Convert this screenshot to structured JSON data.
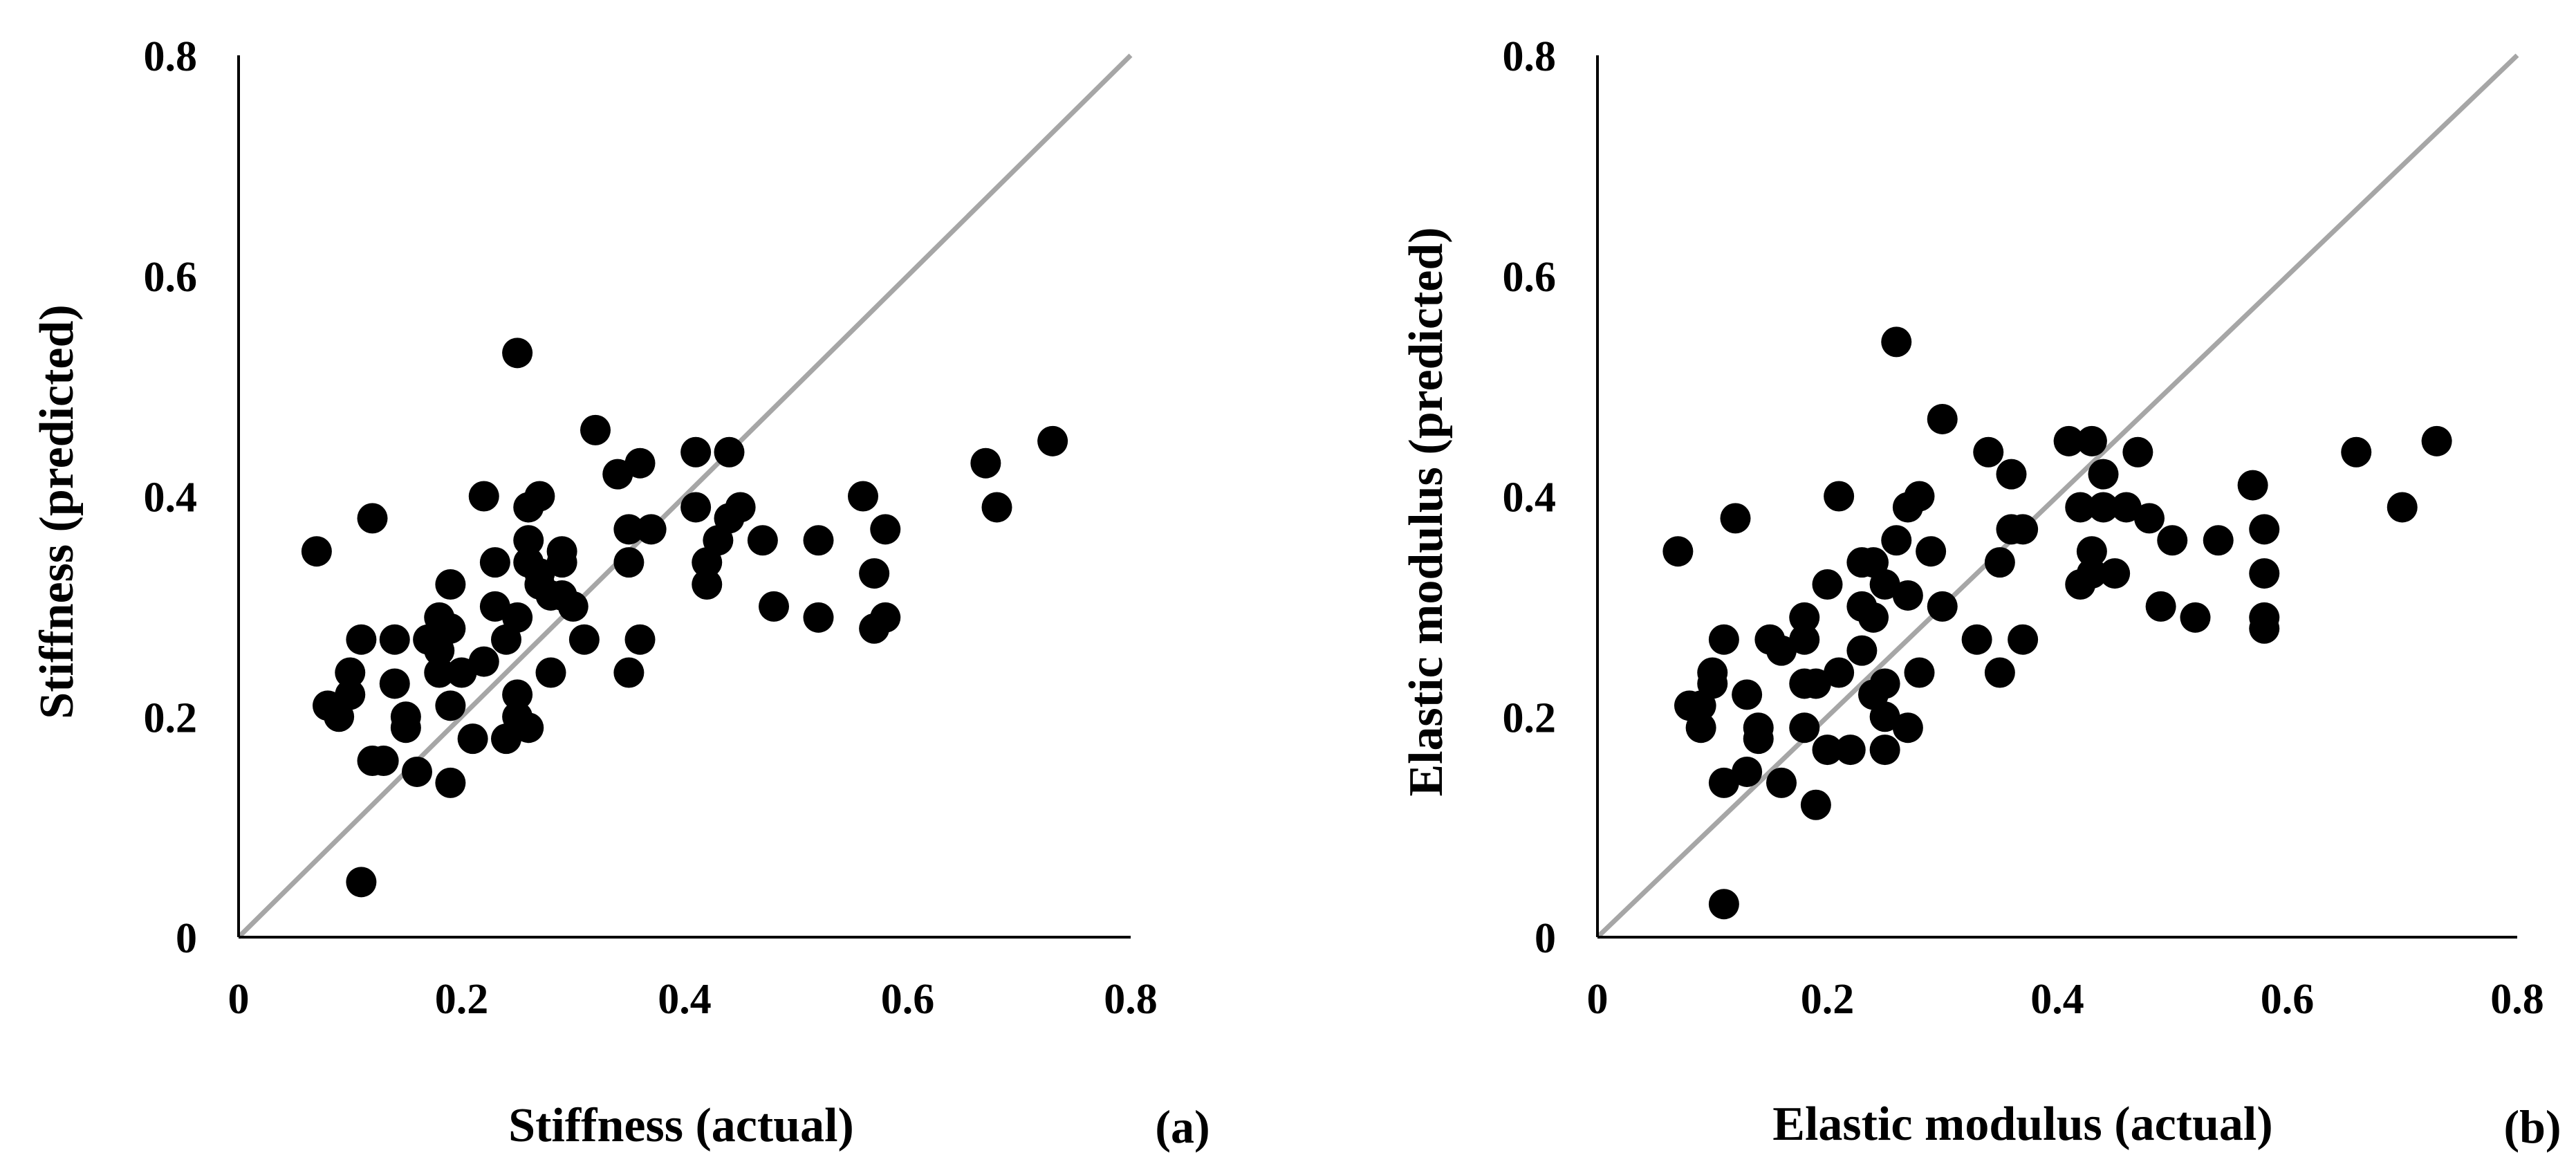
{
  "chart_data": [
    {
      "type": "scatter",
      "panel_label": "(a)",
      "xlabel": "Stiffness (actual)",
      "ylabel": "Stiffness (predicted)",
      "xlim": [
        0,
        0.8
      ],
      "ylim": [
        0,
        0.8
      ],
      "x_ticks": [
        "0",
        "0.2",
        "0.4",
        "0.6",
        "0.8"
      ],
      "y_ticks": [
        "0",
        "0.2",
        "0.4",
        "0.6",
        "0.8"
      ],
      "reference_line": {
        "from": [
          0,
          0
        ],
        "to": [
          0.8,
          0.8
        ],
        "color": "#a6a6a6"
      },
      "marker_color": "#000000",
      "points": [
        [
          0.07,
          0.35
        ],
        [
          0.08,
          0.21
        ],
        [
          0.09,
          0.2
        ],
        [
          0.1,
          0.22
        ],
        [
          0.1,
          0.24
        ],
        [
          0.11,
          0.27
        ],
        [
          0.12,
          0.38
        ],
        [
          0.12,
          0.16
        ],
        [
          0.13,
          0.16
        ],
        [
          0.14,
          0.23
        ],
        [
          0.14,
          0.27
        ],
        [
          0.15,
          0.2
        ],
        [
          0.15,
          0.19
        ],
        [
          0.16,
          0.15
        ],
        [
          0.17,
          0.27
        ],
        [
          0.18,
          0.24
        ],
        [
          0.18,
          0.26
        ],
        [
          0.18,
          0.29
        ],
        [
          0.19,
          0.14
        ],
        [
          0.19,
          0.28
        ],
        [
          0.19,
          0.21
        ],
        [
          0.19,
          0.32
        ],
        [
          0.2,
          0.24
        ],
        [
          0.21,
          0.18
        ],
        [
          0.22,
          0.4
        ],
        [
          0.22,
          0.25
        ],
        [
          0.23,
          0.34
        ],
        [
          0.23,
          0.3
        ],
        [
          0.24,
          0.18
        ],
        [
          0.24,
          0.27
        ],
        [
          0.25,
          0.22
        ],
        [
          0.25,
          0.2
        ],
        [
          0.25,
          0.53
        ],
        [
          0.25,
          0.29
        ],
        [
          0.26,
          0.19
        ],
        [
          0.26,
          0.34
        ],
        [
          0.26,
          0.39
        ],
        [
          0.26,
          0.36
        ],
        [
          0.27,
          0.32
        ],
        [
          0.27,
          0.4
        ],
        [
          0.27,
          0.33
        ],
        [
          0.28,
          0.31
        ],
        [
          0.28,
          0.24
        ],
        [
          0.29,
          0.35
        ],
        [
          0.29,
          0.34
        ],
        [
          0.29,
          0.31
        ],
        [
          0.3,
          0.3
        ],
        [
          0.31,
          0.27
        ],
        [
          0.32,
          0.46
        ],
        [
          0.34,
          0.42
        ],
        [
          0.35,
          0.37
        ],
        [
          0.35,
          0.34
        ],
        [
          0.35,
          0.24
        ],
        [
          0.36,
          0.43
        ],
        [
          0.36,
          0.27
        ],
        [
          0.37,
          0.37
        ],
        [
          0.41,
          0.44
        ],
        [
          0.41,
          0.39
        ],
        [
          0.42,
          0.32
        ],
        [
          0.42,
          0.34
        ],
        [
          0.43,
          0.36
        ],
        [
          0.44,
          0.44
        ],
        [
          0.44,
          0.38
        ],
        [
          0.45,
          0.39
        ],
        [
          0.47,
          0.36
        ],
        [
          0.48,
          0.3
        ],
        [
          0.52,
          0.29
        ],
        [
          0.52,
          0.36
        ],
        [
          0.56,
          0.4
        ],
        [
          0.57,
          0.33
        ],
        [
          0.57,
          0.28
        ],
        [
          0.58,
          0.37
        ],
        [
          0.58,
          0.29
        ],
        [
          0.67,
          0.43
        ],
        [
          0.68,
          0.39
        ],
        [
          0.73,
          0.45
        ],
        [
          0.11,
          0.05
        ]
      ]
    },
    {
      "type": "scatter",
      "panel_label": "(b)",
      "xlabel": "Elastic modulus (actual)",
      "ylabel": "Elastic modulus (predicted)",
      "xlim": [
        0,
        0.8
      ],
      "ylim": [
        0,
        0.8
      ],
      "x_ticks": [
        "0",
        "0.2",
        "0.4",
        "0.6",
        "0.8"
      ],
      "y_ticks": [
        "0",
        "0.2",
        "0.4",
        "0.6",
        "0.8"
      ],
      "reference_line": {
        "from": [
          0,
          0
        ],
        "to": [
          0.8,
          0.8
        ],
        "color": "#a6a6a6"
      },
      "marker_color": "#000000",
      "points": [
        [
          0.07,
          0.35
        ],
        [
          0.08,
          0.21
        ],
        [
          0.09,
          0.19
        ],
        [
          0.09,
          0.21
        ],
        [
          0.1,
          0.24
        ],
        [
          0.1,
          0.23
        ],
        [
          0.11,
          0.27
        ],
        [
          0.11,
          0.14
        ],
        [
          0.12,
          0.38
        ],
        [
          0.13,
          0.22
        ],
        [
          0.13,
          0.15
        ],
        [
          0.14,
          0.18
        ],
        [
          0.14,
          0.19
        ],
        [
          0.15,
          0.27
        ],
        [
          0.16,
          0.26
        ],
        [
          0.16,
          0.14
        ],
        [
          0.18,
          0.29
        ],
        [
          0.18,
          0.27
        ],
        [
          0.18,
          0.23
        ],
        [
          0.18,
          0.19
        ],
        [
          0.19,
          0.12
        ],
        [
          0.19,
          0.23
        ],
        [
          0.2,
          0.32
        ],
        [
          0.2,
          0.17
        ],
        [
          0.21,
          0.24
        ],
        [
          0.21,
          0.4
        ],
        [
          0.22,
          0.17
        ],
        [
          0.23,
          0.34
        ],
        [
          0.23,
          0.3
        ],
        [
          0.23,
          0.26
        ],
        [
          0.24,
          0.34
        ],
        [
          0.24,
          0.29
        ],
        [
          0.24,
          0.22
        ],
        [
          0.25,
          0.2
        ],
        [
          0.25,
          0.23
        ],
        [
          0.25,
          0.17
        ],
        [
          0.25,
          0.32
        ],
        [
          0.26,
          0.36
        ],
        [
          0.26,
          0.54
        ],
        [
          0.27,
          0.19
        ],
        [
          0.27,
          0.39
        ],
        [
          0.27,
          0.31
        ],
        [
          0.28,
          0.4
        ],
        [
          0.28,
          0.24
        ],
        [
          0.29,
          0.35
        ],
        [
          0.3,
          0.47
        ],
        [
          0.3,
          0.3
        ],
        [
          0.33,
          0.27
        ],
        [
          0.34,
          0.44
        ],
        [
          0.35,
          0.24
        ],
        [
          0.35,
          0.34
        ],
        [
          0.36,
          0.37
        ],
        [
          0.36,
          0.42
        ],
        [
          0.37,
          0.37
        ],
        [
          0.37,
          0.27
        ],
        [
          0.41,
          0.45
        ],
        [
          0.42,
          0.39
        ],
        [
          0.42,
          0.32
        ],
        [
          0.43,
          0.35
        ],
        [
          0.43,
          0.33
        ],
        [
          0.43,
          0.45
        ],
        [
          0.44,
          0.39
        ],
        [
          0.44,
          0.42
        ],
        [
          0.45,
          0.33
        ],
        [
          0.46,
          0.39
        ],
        [
          0.47,
          0.44
        ],
        [
          0.48,
          0.38
        ],
        [
          0.49,
          0.3
        ],
        [
          0.5,
          0.36
        ],
        [
          0.52,
          0.29
        ],
        [
          0.54,
          0.36
        ],
        [
          0.57,
          0.41
        ],
        [
          0.58,
          0.29
        ],
        [
          0.58,
          0.33
        ],
        [
          0.58,
          0.37
        ],
        [
          0.58,
          0.28
        ],
        [
          0.66,
          0.44
        ],
        [
          0.7,
          0.39
        ],
        [
          0.73,
          0.45
        ],
        [
          0.11,
          0.03
        ]
      ]
    }
  ]
}
